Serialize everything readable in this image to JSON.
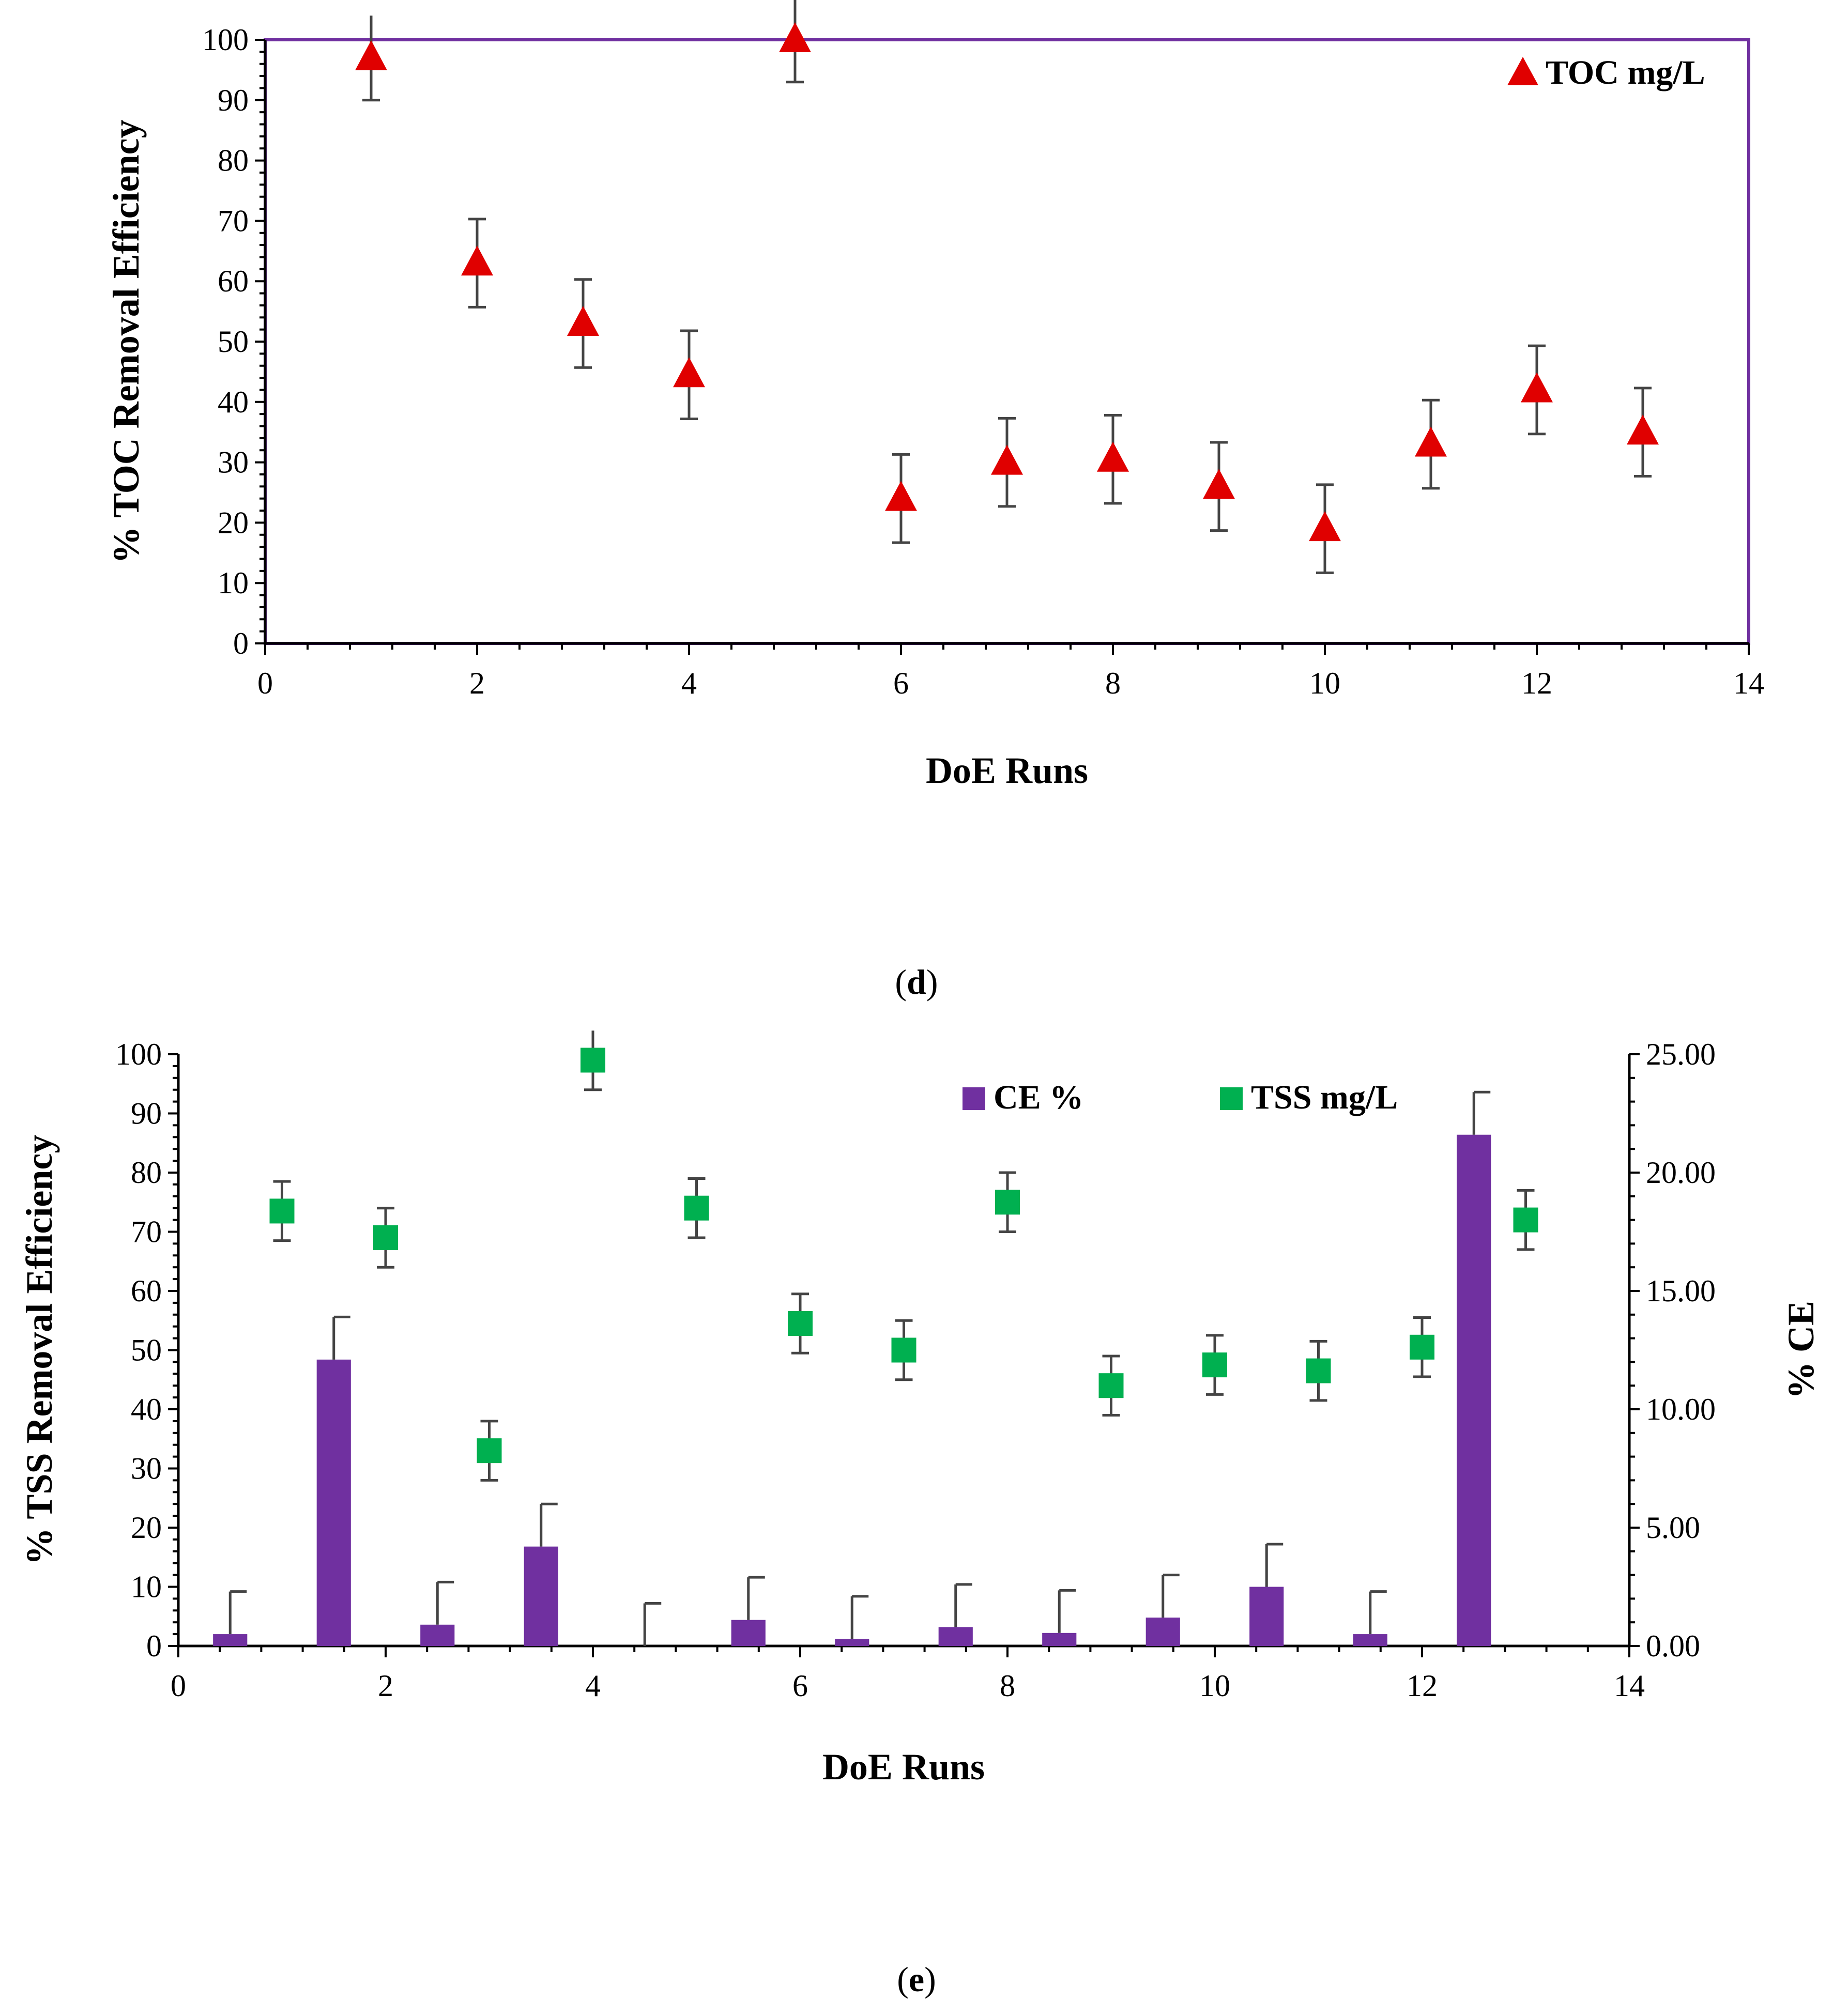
{
  "chart_data": [
    {
      "panel": "d",
      "type": "scatter",
      "caption": "(d)",
      "caption_letter": "d",
      "xlabel": "DoE Runs",
      "ylabel": "% TOC Removal Efficiency",
      "xlim": [
        0,
        14
      ],
      "ylim": [
        0,
        100
      ],
      "x_ticks": [
        0,
        2,
        4,
        6,
        8,
        10,
        12,
        14
      ],
      "y_ticks": [
        0,
        10,
        20,
        30,
        40,
        50,
        60,
        70,
        80,
        90,
        100
      ],
      "grid": false,
      "legend_position": "top-right",
      "series": [
        {
          "name": "TOC mg/L",
          "marker": "triangle",
          "color": "#e00000",
          "x": [
            1,
            2,
            3,
            4,
            5,
            6,
            7,
            8,
            9,
            10,
            11,
            12,
            13
          ],
          "y": [
            97,
            63,
            53,
            44.5,
            100,
            24,
            30,
            30.5,
            26,
            19,
            33,
            42,
            35
          ],
          "error": [
            7,
            7.3,
            7.3,
            7.3,
            7,
            7.3,
            7.3,
            7.3,
            7.3,
            7.3,
            7.3,
            7.3,
            7.3
          ]
        }
      ]
    },
    {
      "panel": "e",
      "type": "bar+scatter",
      "caption": "(e)",
      "caption_letter": "e",
      "xlabel": "DoE Runs",
      "ylabel": "% TSS Removal Efficiency",
      "y2label": "% CE",
      "xlim": [
        0,
        14
      ],
      "ylim": [
        0,
        100
      ],
      "y2lim": [
        0,
        25
      ],
      "x_ticks": [
        0,
        2,
        4,
        6,
        8,
        10,
        12,
        14
      ],
      "y_ticks": [
        0,
        10,
        20,
        30,
        40,
        50,
        60,
        70,
        80,
        90,
        100
      ],
      "y2_ticks": [
        "0.00",
        "5.00",
        "10.00",
        "15.00",
        "20.00",
        "25.00"
      ],
      "grid": false,
      "legend_position": "top-right",
      "series": [
        {
          "name": "CE %",
          "kind": "bar",
          "axis": "right",
          "color": "#7030a0",
          "categories": [
            1,
            2,
            3,
            4,
            5,
            6,
            7,
            8,
            9,
            10,
            11,
            12,
            13,
            14
          ],
          "values": [
            0.5,
            12.1,
            0.9,
            4.2,
            0,
            1.1,
            0.3,
            0.8,
            0.55,
            1.2,
            2.5,
            0.5,
            21.6,
            null
          ],
          "error": [
            1.8,
            1.8,
            1.8,
            1.8,
            1.8,
            1.8,
            1.8,
            1.8,
            1.8,
            1.8,
            1.8,
            1.8,
            1.8,
            null
          ]
        },
        {
          "name": "TSS mg/L",
          "kind": "scatter",
          "marker": "square",
          "axis": "left",
          "color": "#00b050",
          "x": [
            1,
            2,
            3,
            4,
            5,
            6,
            7,
            8,
            9,
            10,
            11,
            12,
            13
          ],
          "y": [
            73.5,
            69,
            33,
            99,
            74,
            54.5,
            50,
            75,
            44,
            47.5,
            46.5,
            50.5,
            72
          ],
          "error": [
            5,
            5,
            5,
            5,
            5,
            5,
            5,
            5,
            5,
            5,
            5,
            5,
            5
          ]
        }
      ]
    }
  ]
}
